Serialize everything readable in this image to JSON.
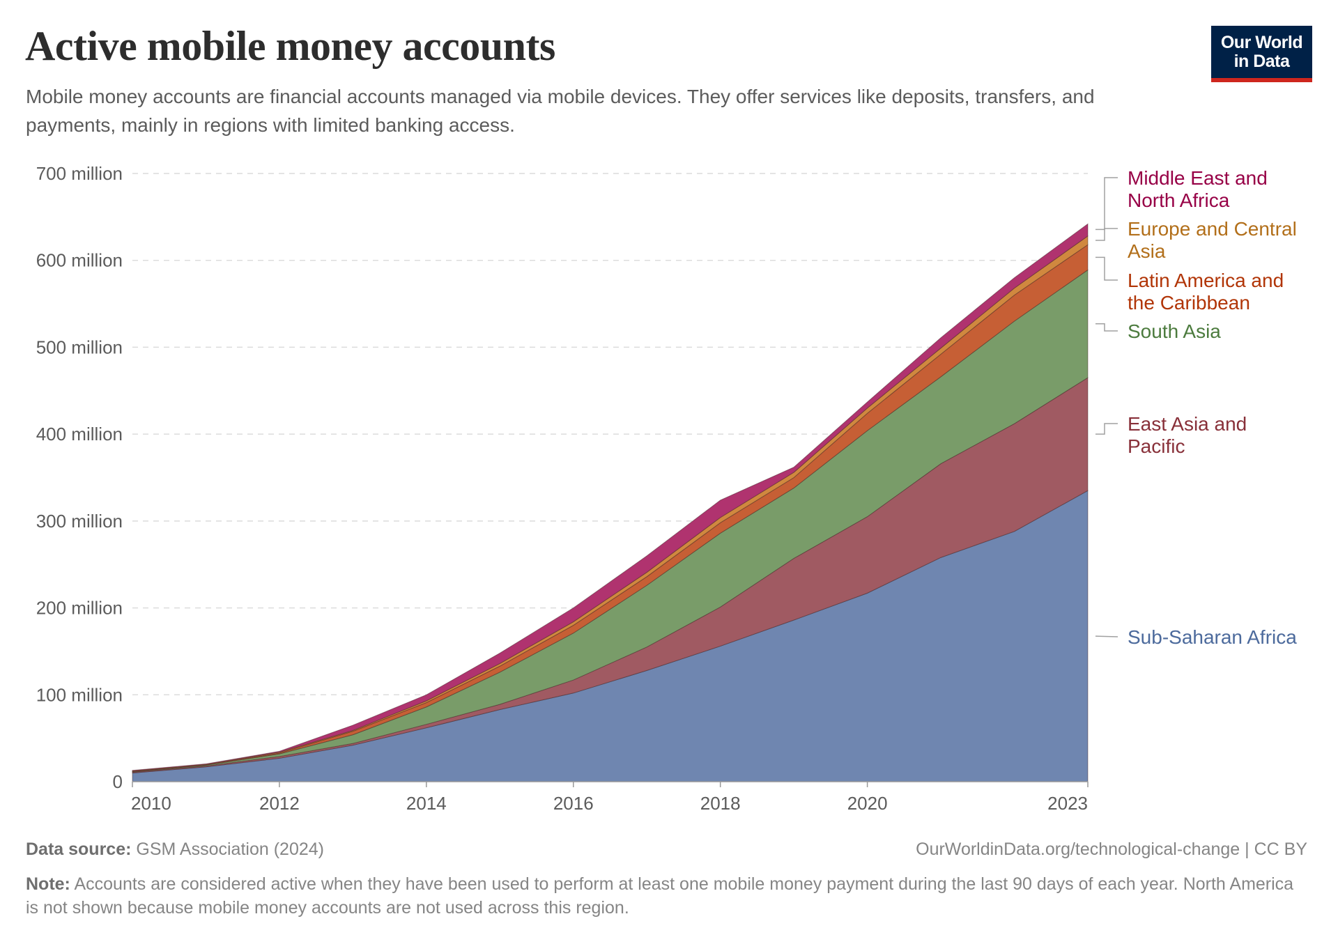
{
  "header": {
    "title": "Active mobile money accounts",
    "subtitle": "Mobile money accounts are financial accounts managed via mobile devices. They offer services like deposits, transfers, and payments, mainly in regions with limited banking access.",
    "logo_line1": "Our World",
    "logo_line2": "in Data"
  },
  "footer": {
    "source_label": "Data source:",
    "source_text": "GSM Association (2024)",
    "url": "OurWorldinData.org/technological-change | CC BY",
    "note_label": "Note:",
    "note_text": "Accounts are considered active when they have been used to perform at least one mobile money payment during the last 90 days of each year. North America is not shown because mobile money accounts are not used across this region."
  },
  "chart_data": {
    "type": "area",
    "stacked": true,
    "title": "Active mobile money accounts",
    "xlabel": "",
    "ylabel": "",
    "x": [
      2010,
      2011,
      2012,
      2013,
      2014,
      2015,
      2016,
      2017,
      2018,
      2019,
      2020,
      2021,
      2022,
      2023
    ],
    "xticks": [
      "2010",
      "2012",
      "2014",
      "2016",
      "2018",
      "2020",
      "2023"
    ],
    "xtick_values": [
      2010,
      2012,
      2014,
      2016,
      2018,
      2020,
      2023
    ],
    "yticks": [
      "0",
      "100 million",
      "200 million",
      "300 million",
      "400 million",
      "500 million",
      "600 million",
      "700 million"
    ],
    "ytick_values": [
      0,
      100,
      200,
      300,
      400,
      500,
      600,
      700
    ],
    "yunit": "million",
    "ylim": [
      0,
      700
    ],
    "grid": "horizontal dashed",
    "legend": "right, inline labels",
    "series": [
      {
        "name": "Sub-Saharan Africa",
        "color": "#6f86b0",
        "label_color": "#4c6a9c",
        "values": [
          10,
          17,
          27,
          42,
          62,
          83,
          102,
          128,
          156,
          186,
          217,
          258,
          288,
          335
        ]
      },
      {
        "name": "East Asia and Pacific",
        "color": "#a05a62",
        "label_color": "#883039",
        "values": [
          1,
          1,
          2,
          2,
          4,
          6,
          15,
          27,
          45,
          71,
          88,
          108,
          124,
          130
        ]
      },
      {
        "name": "South Asia",
        "color": "#799c69",
        "label_color": "#4c7b3e",
        "values": [
          0.5,
          1,
          3,
          10,
          20,
          37,
          54,
          71,
          85,
          81,
          99,
          100,
          118,
          124
        ]
      },
      {
        "name": "Latin America and the Caribbean",
        "color": "#c65f35",
        "label_color": "#b13507",
        "values": [
          0.5,
          0.5,
          1,
          4,
          5,
          7,
          9,
          10,
          12,
          12,
          20,
          26,
          30,
          29
        ]
      },
      {
        "name": "Europe and Central Asia",
        "color": "#d0883f",
        "label_color": "#b26f1a",
        "values": [
          0.5,
          0.5,
          1,
          1,
          2,
          3,
          4,
          5,
          6,
          6,
          6,
          7,
          8,
          10
        ]
      },
      {
        "name": "Middle East and North Africa",
        "color": "#b0336f",
        "label_color": "#970046",
        "values": [
          0.5,
          0.5,
          1,
          6,
          7,
          12,
          16,
          19,
          20,
          6,
          7,
          12,
          12,
          14
        ]
      }
    ],
    "labels": [
      {
        "series": "Middle East and North Africa",
        "lines": [
          "Middle East and",
          "North Africa"
        ]
      },
      {
        "series": "Europe and Central Asia",
        "lines": [
          "Europe and Central",
          "Asia"
        ]
      },
      {
        "series": "Latin America and the Caribbean",
        "lines": [
          "Latin America and",
          "the Caribbean"
        ]
      },
      {
        "series": "South Asia",
        "lines": [
          "South Asia"
        ]
      },
      {
        "series": "East Asia and Pacific",
        "lines": [
          "East Asia and",
          "Pacific"
        ]
      },
      {
        "series": "Sub-Saharan Africa",
        "lines": [
          "Sub-Saharan Africa"
        ]
      }
    ]
  }
}
